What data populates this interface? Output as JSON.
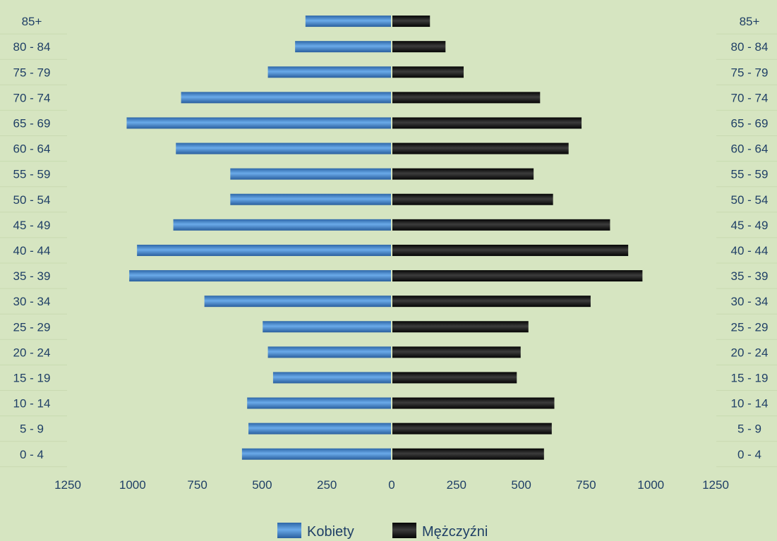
{
  "chart_data": {
    "type": "bar",
    "orientation": "horizontal-population-pyramid",
    "categories": [
      "85+",
      "80 - 84",
      "75 - 79",
      "70 - 74",
      "65 - 69",
      "60 - 64",
      "55 - 59",
      "50 - 54",
      "45 - 49",
      "40 - 44",
      "35 - 39",
      "30 - 34",
      "25 - 29",
      "20 - 24",
      "15 - 19",
      "10 - 14",
      "5 - 9",
      "0 - 4"
    ],
    "series": [
      {
        "name": "Kobiety",
        "side": "left",
        "color": "#4a90d6",
        "values": [
          330,
          370,
          475,
          810,
          1020,
          830,
          620,
          620,
          840,
          980,
          1010,
          720,
          495,
          475,
          455,
          555,
          550,
          575
        ]
      },
      {
        "name": "Mężczyźni",
        "side": "right",
        "color": "#111111",
        "values": [
          145,
          205,
          275,
          570,
          730,
          680,
          545,
          620,
          840,
          910,
          965,
          765,
          525,
          495,
          480,
          625,
          615,
          585
        ]
      }
    ],
    "xlim": [
      -1250,
      1250
    ],
    "xticks": [
      -1250,
      -1000,
      -750,
      -500,
      -250,
      0,
      250,
      500,
      750,
      1000,
      1250
    ],
    "xtick_labels": [
      "1250",
      "1000",
      "750",
      "500",
      "250",
      "0",
      "250",
      "500",
      "750",
      "1000",
      "1250"
    ],
    "grid": false,
    "legend": {
      "placement": "bottom-center",
      "items": [
        "Kobiety",
        "Mężczyźni"
      ]
    }
  }
}
